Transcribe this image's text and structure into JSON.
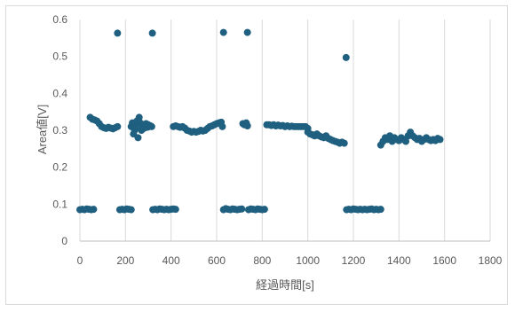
{
  "chart_data": {
    "type": "scatter",
    "title": "",
    "xlabel": "経過時間[s]",
    "ylabel": "Area値[V]",
    "xlim": [
      0,
      1800
    ],
    "ylim": [
      0,
      0.6
    ],
    "x_ticks": [
      "0",
      "200",
      "400",
      "600",
      "800",
      "1000",
      "1200",
      "1400",
      "1600",
      "1800"
    ],
    "y_ticks": [
      "0",
      "0.1",
      "0.2",
      "0.3",
      "0.4",
      "0.5",
      "0.6"
    ],
    "grid": "vertical",
    "legend": "none",
    "marker_color": "#1f5f7f",
    "series": [
      {
        "points": [
          [
            0,
            0.085
          ],
          [
            10,
            0.086
          ],
          [
            20,
            0.085
          ],
          [
            30,
            0.087
          ],
          [
            40,
            0.086
          ],
          [
            50,
            0.085
          ],
          [
            60,
            0.086
          ],
          [
            45,
            0.335
          ],
          [
            55,
            0.33
          ],
          [
            65,
            0.328
          ],
          [
            75,
            0.325
          ],
          [
            85,
            0.318
          ],
          [
            95,
            0.31
          ],
          [
            105,
            0.307
          ],
          [
            115,
            0.305
          ],
          [
            125,
            0.308
          ],
          [
            135,
            0.306
          ],
          [
            145,
            0.304
          ],
          [
            155,
            0.307
          ],
          [
            165,
            0.31
          ],
          [
            165,
            0.563
          ],
          [
            175,
            0.085
          ],
          [
            185,
            0.086
          ],
          [
            195,
            0.085
          ],
          [
            205,
            0.087
          ],
          [
            215,
            0.086
          ],
          [
            225,
            0.085
          ],
          [
            225,
            0.31
          ],
          [
            230,
            0.32
          ],
          [
            235,
            0.29
          ],
          [
            240,
            0.3
          ],
          [
            245,
            0.31
          ],
          [
            250,
            0.325
          ],
          [
            255,
            0.28
          ],
          [
            260,
            0.335
          ],
          [
            265,
            0.32
          ],
          [
            270,
            0.3
          ],
          [
            275,
            0.31
          ],
          [
            280,
            0.305
          ],
          [
            285,
            0.312
          ],
          [
            290,
            0.318
          ],
          [
            295,
            0.308
          ],
          [
            300,
            0.315
          ],
          [
            305,
            0.31
          ],
          [
            310,
            0.312
          ],
          [
            315,
            0.31
          ],
          [
            318,
            0.563
          ],
          [
            320,
            0.085
          ],
          [
            330,
            0.086
          ],
          [
            340,
            0.085
          ],
          [
            350,
            0.087
          ],
          [
            360,
            0.086
          ],
          [
            370,
            0.085
          ],
          [
            380,
            0.086
          ],
          [
            390,
            0.085
          ],
          [
            400,
            0.086
          ],
          [
            410,
            0.087
          ],
          [
            420,
            0.086
          ],
          [
            410,
            0.31
          ],
          [
            420,
            0.312
          ],
          [
            430,
            0.31
          ],
          [
            440,
            0.308
          ],
          [
            450,
            0.31
          ],
          [
            460,
            0.306
          ],
          [
            470,
            0.3
          ],
          [
            480,
            0.298
          ],
          [
            490,
            0.295
          ],
          [
            500,
            0.297
          ],
          [
            510,
            0.295
          ],
          [
            520,
            0.297
          ],
          [
            530,
            0.3
          ],
          [
            540,
            0.298
          ],
          [
            550,
            0.3
          ],
          [
            560,
            0.305
          ],
          [
            570,
            0.31
          ],
          [
            580,
            0.312
          ],
          [
            590,
            0.315
          ],
          [
            600,
            0.318
          ],
          [
            610,
            0.32
          ],
          [
            620,
            0.322
          ],
          [
            625,
            0.31
          ],
          [
            630,
            0.565
          ],
          [
            630,
            0.085
          ],
          [
            640,
            0.088
          ],
          [
            650,
            0.086
          ],
          [
            660,
            0.085
          ],
          [
            670,
            0.087
          ],
          [
            680,
            0.086
          ],
          [
            690,
            0.085
          ],
          [
            700,
            0.086
          ],
          [
            710,
            0.087
          ],
          [
            715,
            0.318
          ],
          [
            722,
            0.315
          ],
          [
            730,
            0.32
          ],
          [
            735,
            0.312
          ],
          [
            735,
            0.565
          ],
          [
            740,
            0.085
          ],
          [
            750,
            0.087
          ],
          [
            760,
            0.086
          ],
          [
            770,
            0.085
          ],
          [
            780,
            0.087
          ],
          [
            790,
            0.086
          ],
          [
            800,
            0.085
          ],
          [
            810,
            0.086
          ],
          [
            820,
            0.315
          ],
          [
            830,
            0.315
          ],
          [
            840,
            0.313
          ],
          [
            850,
            0.315
          ],
          [
            860,
            0.312
          ],
          [
            870,
            0.314
          ],
          [
            880,
            0.312
          ],
          [
            890,
            0.313
          ],
          [
            900,
            0.31
          ],
          [
            910,
            0.312
          ],
          [
            920,
            0.31
          ],
          [
            930,
            0.311
          ],
          [
            940,
            0.31
          ],
          [
            950,
            0.31
          ],
          [
            960,
            0.31
          ],
          [
            970,
            0.31
          ],
          [
            980,
            0.31
          ],
          [
            990,
            0.31
          ],
          [
            1000,
            0.305
          ],
          [
            1000,
            0.295
          ],
          [
            1010,
            0.29
          ],
          [
            1020,
            0.288
          ],
          [
            1030,
            0.285
          ],
          [
            1040,
            0.29
          ],
          [
            1050,
            0.285
          ],
          [
            1060,
            0.282
          ],
          [
            1070,
            0.28
          ],
          [
            1080,
            0.285
          ],
          [
            1090,
            0.278
          ],
          [
            1100,
            0.275
          ],
          [
            1110,
            0.272
          ],
          [
            1120,
            0.27
          ],
          [
            1130,
            0.268
          ],
          [
            1140,
            0.265
          ],
          [
            1150,
            0.268
          ],
          [
            1160,
            0.265
          ],
          [
            1168,
            0.497
          ],
          [
            1170,
            0.085
          ],
          [
            1180,
            0.086
          ],
          [
            1190,
            0.085
          ],
          [
            1200,
            0.087
          ],
          [
            1210,
            0.086
          ],
          [
            1220,
            0.085
          ],
          [
            1230,
            0.086
          ],
          [
            1240,
            0.085
          ],
          [
            1250,
            0.086
          ],
          [
            1260,
            0.085
          ],
          [
            1270,
            0.086
          ],
          [
            1280,
            0.087
          ],
          [
            1290,
            0.085
          ],
          [
            1300,
            0.086
          ],
          [
            1310,
            0.085
          ],
          [
            1320,
            0.086
          ],
          [
            1320,
            0.26
          ],
          [
            1330,
            0.27
          ],
          [
            1340,
            0.28
          ],
          [
            1350,
            0.275
          ],
          [
            1360,
            0.285
          ],
          [
            1370,
            0.27
          ],
          [
            1380,
            0.28
          ],
          [
            1390,
            0.275
          ],
          [
            1400,
            0.272
          ],
          [
            1410,
            0.28
          ],
          [
            1420,
            0.275
          ],
          [
            1430,
            0.27
          ],
          [
            1440,
            0.285
          ],
          [
            1450,
            0.295
          ],
          [
            1460,
            0.285
          ],
          [
            1470,
            0.28
          ],
          [
            1480,
            0.275
          ],
          [
            1490,
            0.278
          ],
          [
            1500,
            0.27
          ],
          [
            1510,
            0.275
          ],
          [
            1520,
            0.28
          ],
          [
            1530,
            0.275
          ],
          [
            1540,
            0.272
          ],
          [
            1550,
            0.275
          ],
          [
            1560,
            0.272
          ],
          [
            1570,
            0.278
          ],
          [
            1580,
            0.275
          ]
        ]
      }
    ]
  }
}
